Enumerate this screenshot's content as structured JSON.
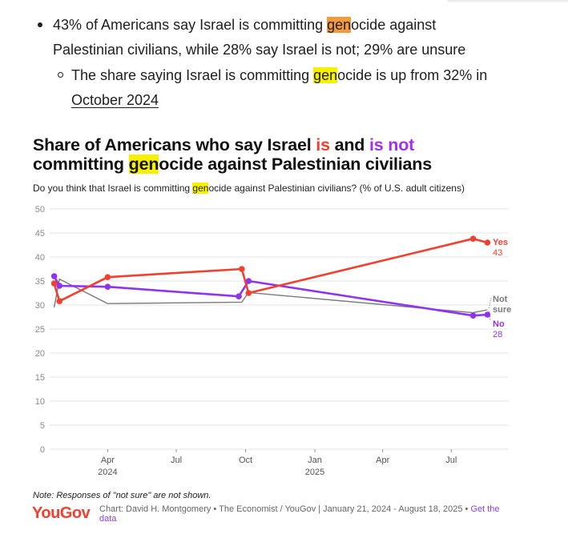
{
  "bullets": {
    "b1_line1_pre": "43% of Americans say Israel is committing ",
    "b1_line1_hl": "gen",
    "b1_line1_post": "ocide against",
    "b1_line2": "Palestinian civilians, while 28% say Israel is not; 29% are unsure",
    "b2_line1_pre": "The share saying Israel is committing ",
    "b2_line1_hl": "gen",
    "b2_line1_post": "ocide is up from 32% in",
    "b2_line2_link": "October 2024"
  },
  "chart": {
    "title_pre": "Share of Americans who say Israel ",
    "title_is": "is",
    "title_and": " and ",
    "title_isnot": "is not",
    "title_line2_pre": "committing ",
    "title_line2_hl": "gen",
    "title_line2_post": "ocide against Palestinian civilians",
    "subtitle_pre": "Do you think that Israel is committing ",
    "subtitle_hl": "gen",
    "subtitle_post": "ocide against Palestinian civilians? (% of U.S. adult citizens)",
    "footnote": "Note: Responses of \"not sure\" are not shown.",
    "logo": "YouGov",
    "source": "Chart: David H. Montgomery • The Economist / YouGov | January 21, 2024 - August 18, 2025 • ",
    "source_link": "Get the data"
  },
  "colors": {
    "yes": "#f0402f",
    "no": "#8f34ee",
    "not_sure": "#7a7a7a",
    "is_text": "#f0402f",
    "isnot_text": "#a12ff0",
    "highlight_yellow": "#f7f000",
    "highlight_orange": "#f39a3d",
    "logo": "#f0402f",
    "link": "#8a3ffc",
    "grid": "#e4e4e4",
    "axis_text": "#8a8a8a"
  },
  "chart_data": {
    "type": "line",
    "title": "Share of Americans who say Israel is and is not committing genocide against Palestinian civilians",
    "subtitle": "Do you think that Israel is committing genocide against Palestinian civilians? (% of U.S. adult citizens)",
    "ylim": [
      0,
      50
    ],
    "yticks": [
      0,
      5,
      10,
      15,
      20,
      25,
      30,
      35,
      40,
      45,
      50
    ],
    "xlim": [
      "2024-01-15",
      "2025-08-25"
    ],
    "xticks": [
      {
        "date": "2024-04-01",
        "label": "Apr",
        "year": "2024"
      },
      {
        "date": "2024-07-01",
        "label": "Jul",
        "year": ""
      },
      {
        "date": "2024-10-01",
        "label": "Oct",
        "year": ""
      },
      {
        "date": "2025-01-01",
        "label": "Jan",
        "year": "2025"
      },
      {
        "date": "2025-04-01",
        "label": "Apr",
        "year": ""
      },
      {
        "date": "2025-07-01",
        "label": "Jul",
        "year": ""
      }
    ],
    "grid": true,
    "series": [
      {
        "name": "Yes",
        "end_label": "Yes",
        "end_value": "43",
        "color_key": "yes",
        "markers": true,
        "points": [
          {
            "x": "2024-01-21",
            "y": 34.5
          },
          {
            "x": "2024-01-28",
            "y": 30.8
          },
          {
            "x": "2024-04-01",
            "y": 35.8
          },
          {
            "x": "2024-09-26",
            "y": 37.5
          },
          {
            "x": "2024-10-05",
            "y": 32.5
          },
          {
            "x": "2025-07-30",
            "y": 43.8
          },
          {
            "x": "2025-08-18",
            "y": 43.0
          }
        ]
      },
      {
        "name": "No",
        "end_label": "No",
        "end_value": "28",
        "color_key": "no",
        "markers": true,
        "points": [
          {
            "x": "2024-01-21",
            "y": 36.0
          },
          {
            "x": "2024-01-28",
            "y": 34.0
          },
          {
            "x": "2024-04-01",
            "y": 33.8
          },
          {
            "x": "2024-09-22",
            "y": 31.8
          },
          {
            "x": "2024-10-05",
            "y": 35.0
          },
          {
            "x": "2025-07-30",
            "y": 27.8
          },
          {
            "x": "2025-08-18",
            "y": 28.0
          }
        ]
      },
      {
        "name": "Not sure",
        "end_label": "Not sure",
        "end_value": "",
        "color_key": "not_sure",
        "markers": false,
        "points": [
          {
            "x": "2024-01-21",
            "y": 29.5
          },
          {
            "x": "2024-01-28",
            "y": 35.4
          },
          {
            "x": "2024-04-01",
            "y": 30.3
          },
          {
            "x": "2024-09-26",
            "y": 30.6
          },
          {
            "x": "2024-10-05",
            "y": 32.6
          },
          {
            "x": "2025-07-30",
            "y": 28.4
          },
          {
            "x": "2025-08-18",
            "y": 29.0
          }
        ]
      }
    ]
  }
}
